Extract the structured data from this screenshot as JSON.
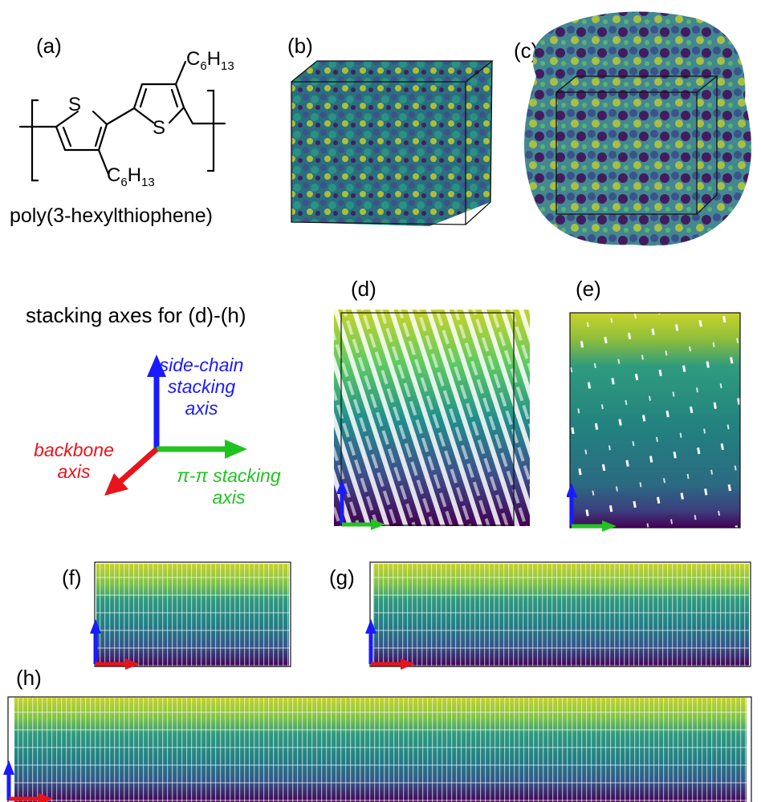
{
  "panels": {
    "a": "(a)",
    "b": "(b)",
    "c": "(c)",
    "d": "(d)",
    "e": "(e)",
    "f": "(f)",
    "g": "(g)",
    "h": "(h)"
  },
  "structure": {
    "name": "poly(3-hexylthiophene)",
    "atom_s": "S",
    "substituent": "C6H13"
  },
  "axes_legend": {
    "title": "stacking axes for (d)-(h)",
    "side_chain": [
      "side-chain",
      "stacking",
      "axis"
    ],
    "backbone": [
      "backbone",
      "axis"
    ],
    "pi_pi": [
      "π-π stacking",
      "axis"
    ]
  },
  "colors": {
    "side_chain_axis": "#1a1aff",
    "backbone_axis": "#e8131b",
    "pi_pi_axis": "#21c321",
    "viridis": [
      "#440154",
      "#3b528b",
      "#21908c",
      "#5ec962",
      "#c8d32a"
    ]
  }
}
